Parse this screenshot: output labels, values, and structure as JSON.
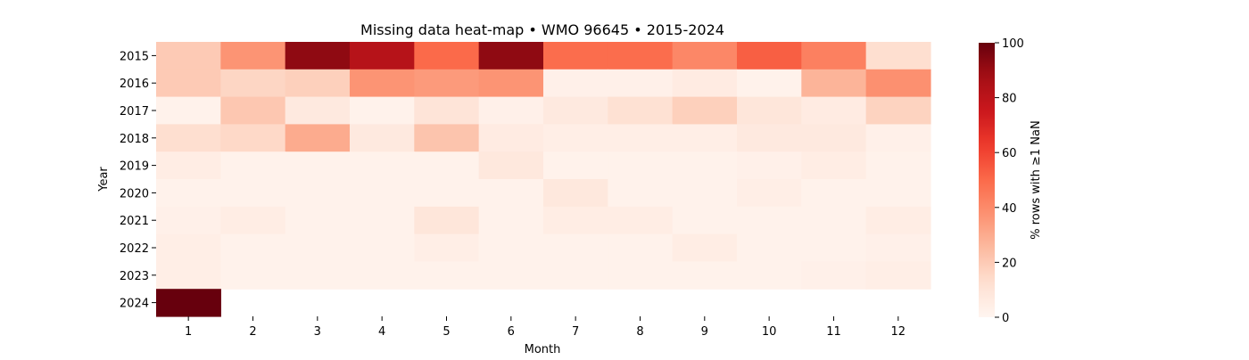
{
  "chart_data": {
    "type": "heatmap",
    "title": "Missing data heat-map • WMO 96645 • 2015-2024",
    "xlabel": "Month",
    "ylabel": "Year",
    "x_categories": [
      "1",
      "2",
      "3",
      "4",
      "5",
      "6",
      "7",
      "8",
      "9",
      "10",
      "11",
      "12"
    ],
    "y_categories": [
      "2015",
      "2016",
      "2017",
      "2018",
      "2019",
      "2020",
      "2021",
      "2022",
      "2023",
      "2024"
    ],
    "values": [
      [
        20,
        37,
        92,
        82,
        50,
        92,
        49,
        49,
        41,
        53,
        43,
        13
      ],
      [
        20,
        16,
        18,
        37,
        35,
        37,
        3,
        3,
        6,
        2,
        27,
        38
      ],
      [
        2,
        21,
        7,
        2,
        10,
        3,
        7,
        12,
        18,
        9,
        6,
        17
      ],
      [
        13,
        15,
        30,
        7,
        22,
        6,
        4,
        4,
        4,
        7,
        7,
        3
      ],
      [
        5,
        2,
        2,
        2,
        2,
        8,
        2,
        2,
        2,
        3,
        5,
        2
      ],
      [
        2,
        2,
        2,
        2,
        2,
        2,
        8,
        2,
        2,
        4,
        2,
        2
      ],
      [
        3,
        5,
        2,
        2,
        9,
        2,
        5,
        5,
        2,
        2,
        2,
        5
      ],
      [
        4,
        2,
        2,
        2,
        4,
        2,
        2,
        2,
        5,
        2,
        2,
        3
      ],
      [
        4,
        2,
        2,
        2,
        2,
        2,
        2,
        2,
        2,
        2,
        3,
        4
      ],
      [
        100,
        null,
        null,
        null,
        null,
        null,
        null,
        null,
        null,
        null,
        null,
        null
      ]
    ],
    "colormap": "Reds",
    "vmin": 0,
    "vmax": 100,
    "colorbar_label": "% rows with ≥1 NaN",
    "colorbar_ticks": [
      0,
      20,
      40,
      60,
      80,
      100
    ]
  }
}
